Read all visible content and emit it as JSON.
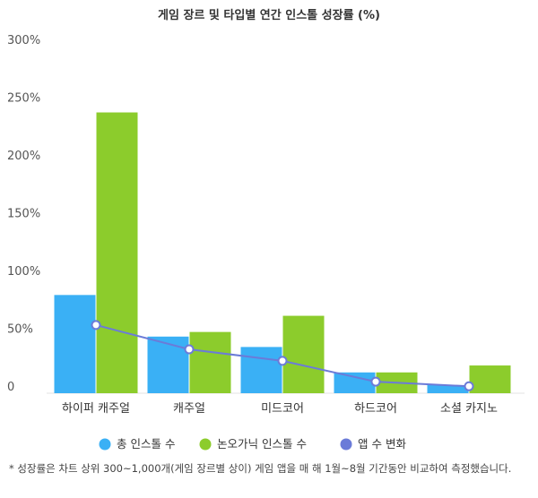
{
  "chart_data": {
    "type": "bar",
    "title": "게임 장르 및 타입별 연간 인스톨 성장률 (%)",
    "categories": [
      "하이퍼 캐주얼",
      "캐주얼",
      "미드코어",
      "하드코어",
      "소셜 카지노"
    ],
    "ytick_labels": [
      "0",
      "50%",
      "100%",
      "150%",
      "200%",
      "250%",
      "300%"
    ],
    "ylim": [
      0,
      300
    ],
    "yticks": [
      0,
      50,
      100,
      150,
      200,
      250,
      300
    ],
    "series": [
      {
        "name": "총 인스톨 수",
        "kind": "bar",
        "color": "#3ab0f5",
        "values": [
          85,
          49,
          40,
          18,
          7
        ]
      },
      {
        "name": "논오가닉 인스톨 수",
        "kind": "bar",
        "color": "#8ccc2c",
        "values": [
          243,
          53,
          67,
          18,
          24
        ]
      },
      {
        "name": "앱 수 변화",
        "kind": "line",
        "color": "#6b7bd8",
        "values": [
          59,
          38,
          28,
          10,
          6
        ]
      }
    ],
    "footnote": "* 성장률은 차트 상위 300~1,000개(게임 장르별 상이) 게임 앱을 매 해 1월~8월 기간동안 비교하여 측정했습니다."
  }
}
